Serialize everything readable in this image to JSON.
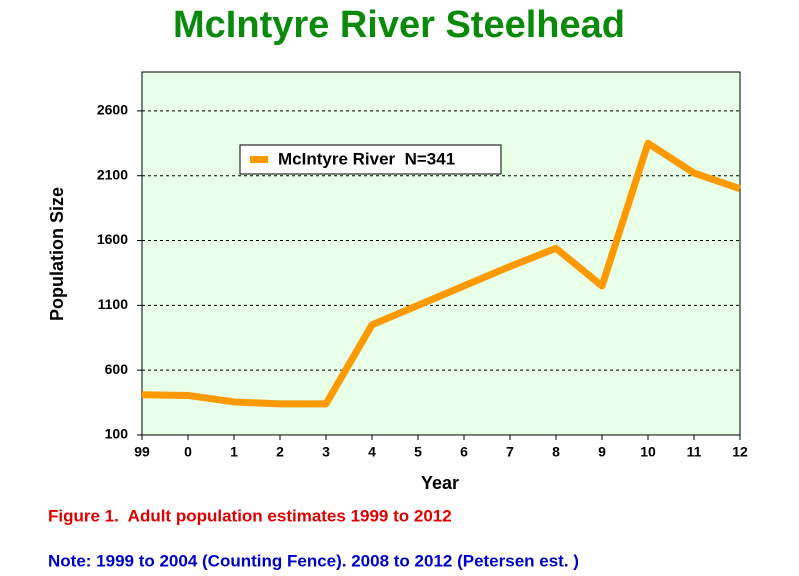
{
  "chart_data": {
    "type": "line",
    "title": "McIntyre River Steelhead",
    "x_label": "Year",
    "y_label": "Population Size",
    "caption": "Figure 1.  Adult population estimates 1999 to 2012",
    "note": "Note: 1999 to 2004 (Counting Fence). 2008 to 2012 (Petersen est. )",
    "categories": [
      "99",
      "0",
      "1",
      "2",
      "3",
      "4",
      "5",
      "6",
      "7",
      "8",
      "9",
      "10",
      "11",
      "12"
    ],
    "series": [
      {
        "name": "McIntyre River  N=341",
        "color": "#ff9900",
        "values": [
          410,
          405,
          355,
          340,
          340,
          950,
          1100,
          1250,
          1400,
          1540,
          1250,
          2350,
          2120,
          2000
        ]
      }
    ],
    "ylim": [
      100,
      2900
    ],
    "yticks": [
      100,
      600,
      1100,
      1600,
      2100,
      2600
    ],
    "grid": true,
    "legend": "upper left"
  }
}
